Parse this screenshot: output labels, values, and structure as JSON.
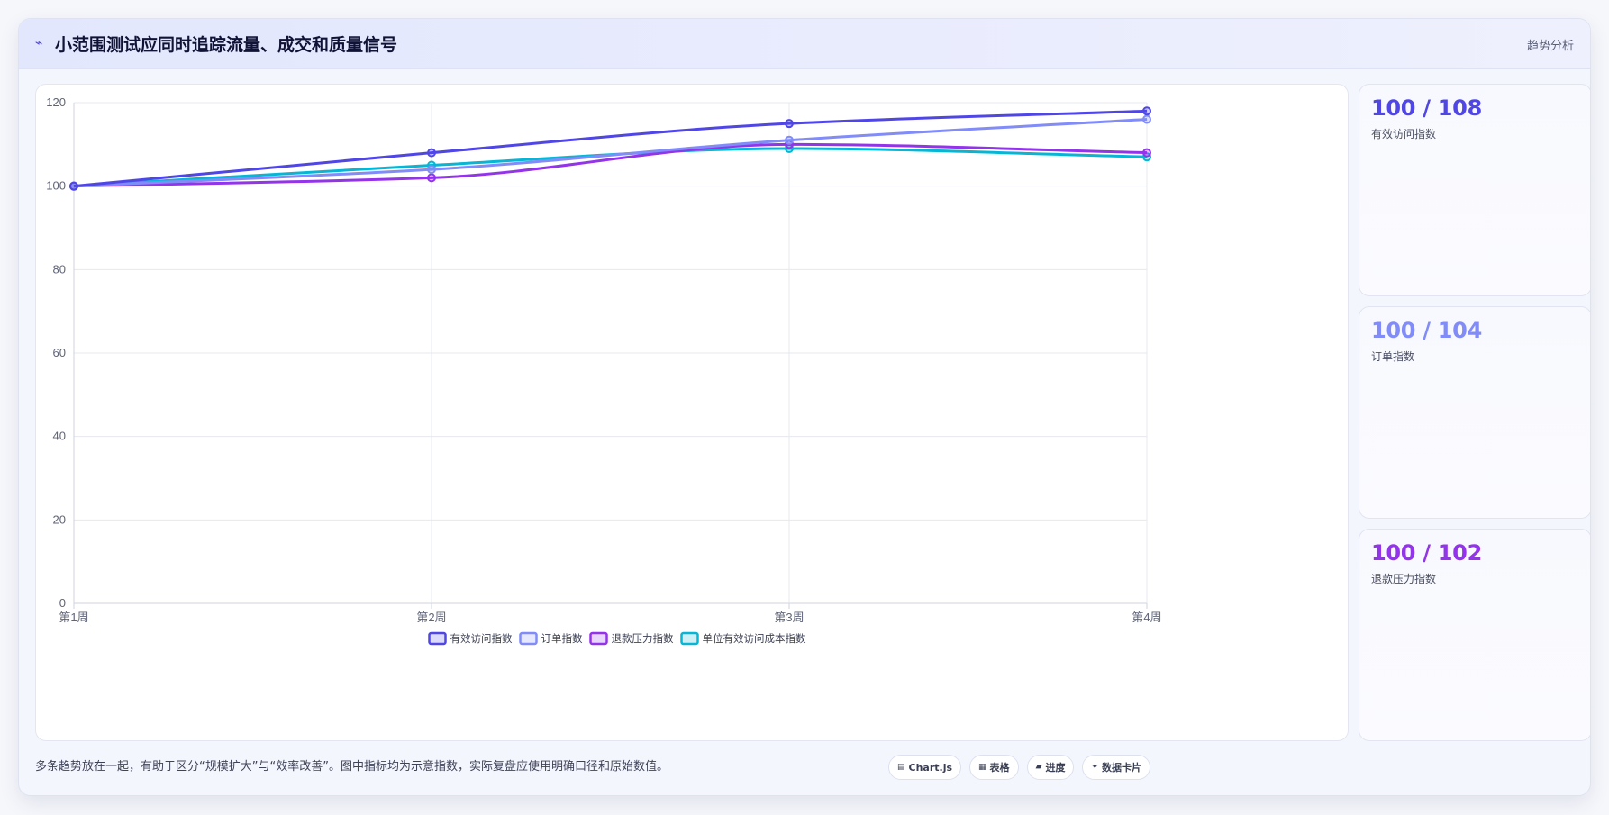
{
  "header": {
    "title": "小范围测试应同时追踪流量、成交和质量信号",
    "tag": "趋势分析",
    "icon": "trend-icon"
  },
  "colors": {
    "visits": "#4f46e5",
    "orders": "#818cf8",
    "refund": "#9333ea",
    "cost": "#06b6d4"
  },
  "chart_data": {
    "type": "line",
    "title": "",
    "xlabel": "",
    "ylabel": "",
    "categories": [
      "第1周",
      "第2周",
      "第3周",
      "第4周"
    ],
    "ylim": [
      0,
      120
    ],
    "yticks": [
      "0",
      "20",
      "40",
      "60",
      "80",
      "100",
      "120"
    ],
    "grid": true,
    "legend_position": "bottom",
    "series": [
      {
        "name": "有效访问指数",
        "values": [
          100,
          108,
          115,
          118
        ],
        "color": "#4f46e5"
      },
      {
        "name": "订单指数",
        "values": [
          100,
          104,
          111,
          116
        ],
        "color": "#818cf8"
      },
      {
        "name": "退款压力指数",
        "values": [
          100,
          102,
          110,
          108
        ],
        "color": "#9333ea"
      },
      {
        "name": "单位有效访问成本指数",
        "values": [
          100,
          105,
          109,
          107
        ],
        "color": "#06b6d4"
      }
    ]
  },
  "kpis": [
    {
      "value": "100 / 108",
      "label": "有效访问指数",
      "color": "#4f46e5"
    },
    {
      "value": "100 / 104",
      "label": "订单指数",
      "color": "#818cf8"
    },
    {
      "value": "100 / 102",
      "label": "退款压力指数",
      "color": "#9333ea"
    }
  ],
  "footer": {
    "note": "多条趋势放在一起，有助于区分“规模扩大”与“效率改善”。图中指标均为示意指数，实际复盘应使用明确口径和原始数值。",
    "chips": [
      {
        "icon": "▤",
        "label": "Chart.js"
      },
      {
        "icon": "▦",
        "label": "表格"
      },
      {
        "icon": "▰",
        "label": "进度"
      },
      {
        "icon": "✦",
        "label": "数据卡片"
      }
    ]
  }
}
